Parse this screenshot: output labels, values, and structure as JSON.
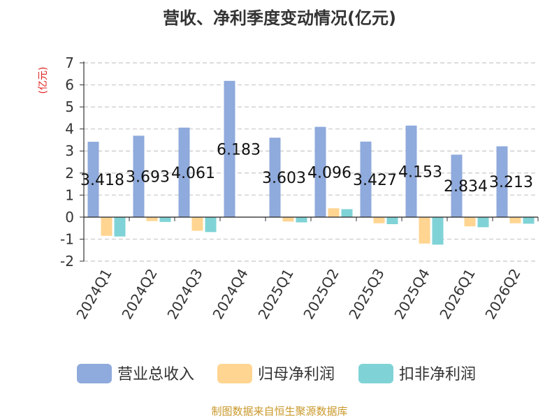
{
  "chart_data": {
    "type": "bar",
    "title": "营收、净利季度变动情况(亿元)",
    "ylabel": "(亿元)",
    "ylim": [
      -2,
      7
    ],
    "yticks": [
      -2,
      -1,
      0,
      1,
      2,
      3,
      4,
      5,
      6,
      7
    ],
    "grid": true,
    "legend_position": "bottom",
    "categories": [
      "2024Q1",
      "2024Q2",
      "2024Q3",
      "2024Q4",
      "2025Q1",
      "2025Q2",
      "2025Q3",
      "2025Q4",
      "2026Q1",
      "2026Q2"
    ],
    "series": [
      {
        "name": "营业总收入",
        "color": "#8FAADC",
        "values": [
          3.418,
          3.693,
          4.061,
          6.183,
          3.603,
          4.096,
          3.427,
          4.153,
          2.834,
          3.213
        ],
        "labels": [
          "3.418",
          "3.693",
          "4.061",
          "6.183",
          "3.603",
          "4.096",
          "3.427",
          "4.153",
          "2.834",
          "3.213"
        ]
      },
      {
        "name": "归母净利润",
        "color": "#FFD591",
        "values": [
          -0.85,
          -0.18,
          -0.62,
          0,
          -0.2,
          0.4,
          -0.28,
          -1.2,
          -0.42,
          -0.28
        ]
      },
      {
        "name": "扣非净利润",
        "color": "#7FD3D6",
        "values": [
          -0.88,
          -0.22,
          -0.68,
          0,
          -0.24,
          0.36,
          -0.32,
          -1.25,
          -0.46,
          -0.3
        ]
      }
    ]
  },
  "footer": {
    "source": "制图数据来自恒生聚源数据库"
  }
}
